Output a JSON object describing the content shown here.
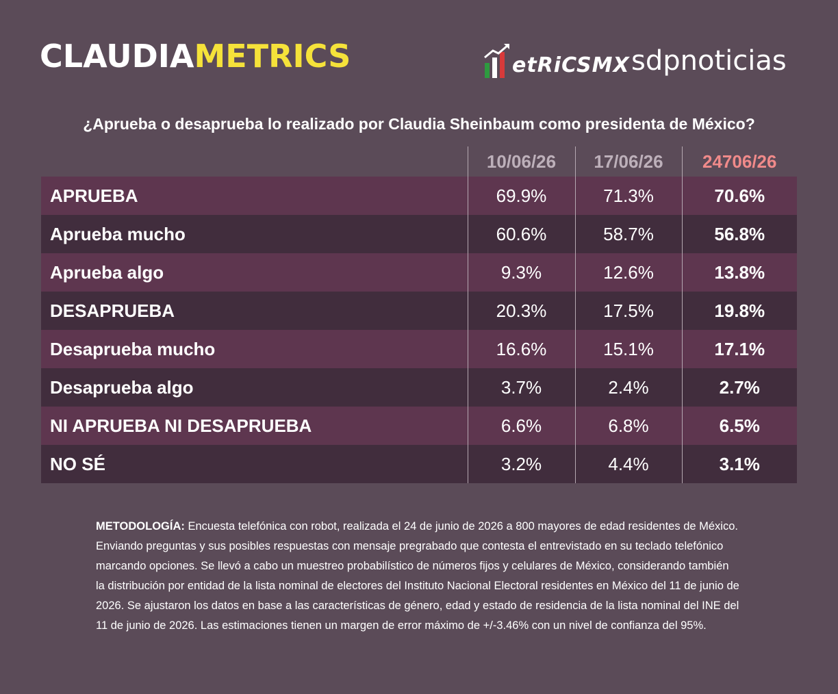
{
  "header": {
    "brand_part1": "CLAUDIA",
    "brand_part2": "METRICS",
    "logo_metricsmx": "etRiCSMX",
    "logo_sdp": "sdpnoticias"
  },
  "colors": {
    "background": "#5b4b58",
    "row_odd": "#5e364f",
    "row_even": "#412d3d",
    "brand_accent": "#f5e23a",
    "latest_date": "#f08a8a",
    "past_dates": "#bdb0ba"
  },
  "chart_data": {
    "type": "table",
    "title": "¿Aprueba o desaprueba lo realizado por Claudia Sheinbaum como presidenta de México?",
    "columns": [
      "10/06/26",
      "17/06/26",
      "24706/26"
    ],
    "rows": [
      {
        "label": "APRUEBA",
        "values": [
          "69.9%",
          "71.3%",
          "70.6%"
        ]
      },
      {
        "label": "Aprueba mucho",
        "values": [
          "60.6%",
          "58.7%",
          "56.8%"
        ]
      },
      {
        "label": "Aprueba algo",
        "values": [
          "9.3%",
          "12.6%",
          "13.8%"
        ]
      },
      {
        "label": "DESAPRUEBA",
        "values": [
          "20.3%",
          "17.5%",
          "19.8%"
        ]
      },
      {
        "label": "Desaprueba mucho",
        "values": [
          "16.6%",
          "15.1%",
          "17.1%"
        ]
      },
      {
        "label": "Desaprueba algo",
        "values": [
          "3.7%",
          "2.4%",
          "2.7%"
        ]
      },
      {
        "label": "NI APRUEBA NI DESAPRUEBA",
        "values": [
          "6.6%",
          "6.8%",
          "6.5%"
        ]
      },
      {
        "label": "NO SÉ",
        "values": [
          "3.2%",
          "4.4%",
          "3.1%"
        ]
      }
    ]
  },
  "methodology": {
    "label": "METODOLOGÍA:",
    "text": " Encuesta telefónica con robot, realizada el 24 de junio de 2026 a 800 mayores de edad residentes de México. Enviando preguntas y sus posibles respuestas con mensaje pregrabado que contesta el entrevistado en su teclado telefónico marcando opciones. Se llevó a cabo un muestreo probabilístico de números fijos y celulares de México, considerando también la distribución por entidad de la lista nominal de electores del Instituto Nacional Electoral residentes en México del 11 de junio de 2026. Se ajustaron los datos en base a las características de género, edad y estado de residencia de la lista nominal del INE del 11 de junio de 2026. Las estimaciones tienen un margen de error máximo de +/-3.46% con un nivel de confianza del 95%."
  }
}
